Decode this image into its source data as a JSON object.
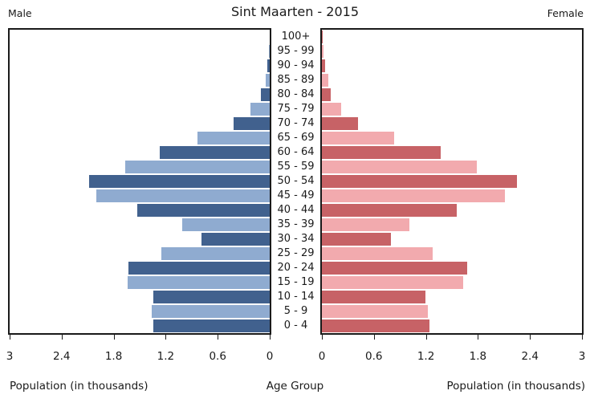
{
  "title": "Sint Maarten - 2015",
  "headers": {
    "left": "Male",
    "right": "Female"
  },
  "axis_labels": {
    "left": "Population (in thousands)",
    "center": "Age Group",
    "right": "Population (in thousands)"
  },
  "colors": {
    "male_dark": "#41618E",
    "male_light": "#8FABD0",
    "female_dark": "#C76266",
    "female_light": "#F2AAAE",
    "frame": "#1a1a1a"
  },
  "chart_data": {
    "type": "bar",
    "subtype": "population-pyramid",
    "title": "Sint Maarten - 2015",
    "xlabel": "Population (in thousands)",
    "ylabel": "Age Group",
    "xlim": [
      0,
      3
    ],
    "tick_labels": [
      "0",
      "0.6",
      "1.2",
      "1.8",
      "2.4",
      "3"
    ],
    "grid": false,
    "legend_position": "top-corners",
    "categories": [
      "100+",
      "95 - 99",
      "90 - 94",
      "85 - 89",
      "80 - 84",
      "75 - 79",
      "70 - 74",
      "65 - 69",
      "60 - 64",
      "55 - 59",
      "50 - 54",
      "45 - 49",
      "40 - 44",
      "35 - 39",
      "30 - 34",
      "25 - 29",
      "20 - 24",
      "15 - 19",
      "10 - 14",
      "5 - 9",
      "0 - 4"
    ],
    "series": [
      {
        "name": "Male",
        "side": "left",
        "values": [
          0.0,
          0.01,
          0.03,
          0.05,
          0.1,
          0.22,
          0.42,
          0.83,
          1.27,
          1.67,
          2.08,
          2.0,
          1.53,
          1.01,
          0.79,
          1.25,
          1.63,
          1.64,
          1.34,
          1.36,
          1.34
        ]
      },
      {
        "name": "Female",
        "side": "right",
        "values": [
          0.01,
          0.02,
          0.04,
          0.07,
          0.1,
          0.22,
          0.42,
          0.83,
          1.37,
          1.79,
          2.25,
          2.11,
          1.56,
          1.01,
          0.8,
          1.28,
          1.68,
          1.63,
          1.19,
          1.22,
          1.24
        ]
      }
    ]
  }
}
